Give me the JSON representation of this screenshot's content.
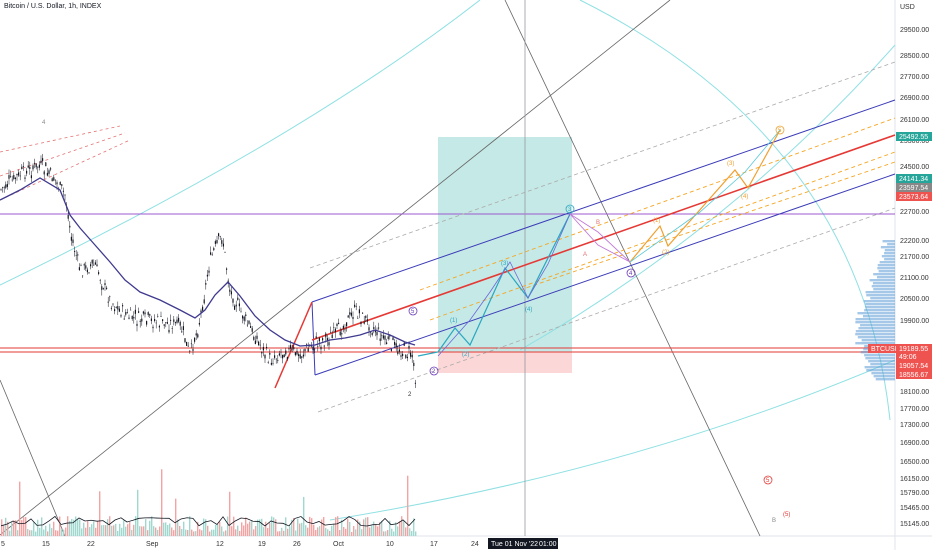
{
  "header": {
    "symbol_title": "Bitcoin / U.S. Dollar, 1h, INDEX"
  },
  "price_axis": {
    "currency": "USD",
    "ticks": [
      "29500.00",
      "28500.00",
      "27700.00",
      "26900.00",
      "26100.00",
      "25300.00",
      "24500.00",
      "23200.00",
      "22700.00",
      "22200.00",
      "21700.00",
      "21100.00",
      "20500.00",
      "19900.00",
      "19100.00",
      "18100.00",
      "17700.00",
      "17300.00",
      "16900.00",
      "16500.00",
      "16150.00",
      "15790.00",
      "15465.00",
      "15145.00"
    ],
    "labels": [
      {
        "text": "25492.55",
        "color": "#26a69a"
      },
      {
        "text": "24141.34",
        "color": "#26a69a"
      },
      {
        "text": "23597.54",
        "color": "#888888"
      },
      {
        "text": "23573.64",
        "color": "#ef5350"
      },
      {
        "text": "BTCUSD",
        "color": "#ef5350"
      },
      {
        "text": "19189.55",
        "color": "#ef5350"
      },
      {
        "text": "49:06",
        "color": "#ef5350"
      },
      {
        "text": "19057.54",
        "color": "#ef5350"
      },
      {
        "text": "18556.67",
        "color": "#ef5350"
      }
    ]
  },
  "time_axis": {
    "ticks": [
      "5",
      "15",
      "22",
      "Sep",
      "12",
      "19",
      "26",
      "Oct",
      "10",
      "17",
      "24"
    ],
    "crosshair_label": "Tue 01 Nov '22",
    "crosshair_time": "01:00"
  },
  "wave_labels": {
    "l1": "1",
    "l2": "2",
    "l3": "3",
    "l4": "4",
    "l5": "5",
    "p1": "(1)",
    "p2": "(2)",
    "p3": "(3)",
    "p4": "(4)",
    "p5": "(5)",
    "a": "A",
    "b": "B",
    "c": "C",
    "oa": "(1)",
    "ob": "(2)",
    "oc": "(3)",
    "od": "(4)",
    "oe": "(5)",
    "rb": "(5)",
    "b2": "B",
    "four": "4",
    "two": "2"
  },
  "colors": {
    "channel": "#3a3ab8",
    "main_trend": "#e53935",
    "dashed_orange": "#f5a623",
    "dashed_gray": "#aaaaaa",
    "teal_zone": "#7fcfc7",
    "pink_zone": "#f7b6b6",
    "purple_line": "#9b59d0",
    "ma_line": "#3f3a8f",
    "wave_cyan": "#2aa7c0",
    "wave_orange": "#f0a030"
  }
}
